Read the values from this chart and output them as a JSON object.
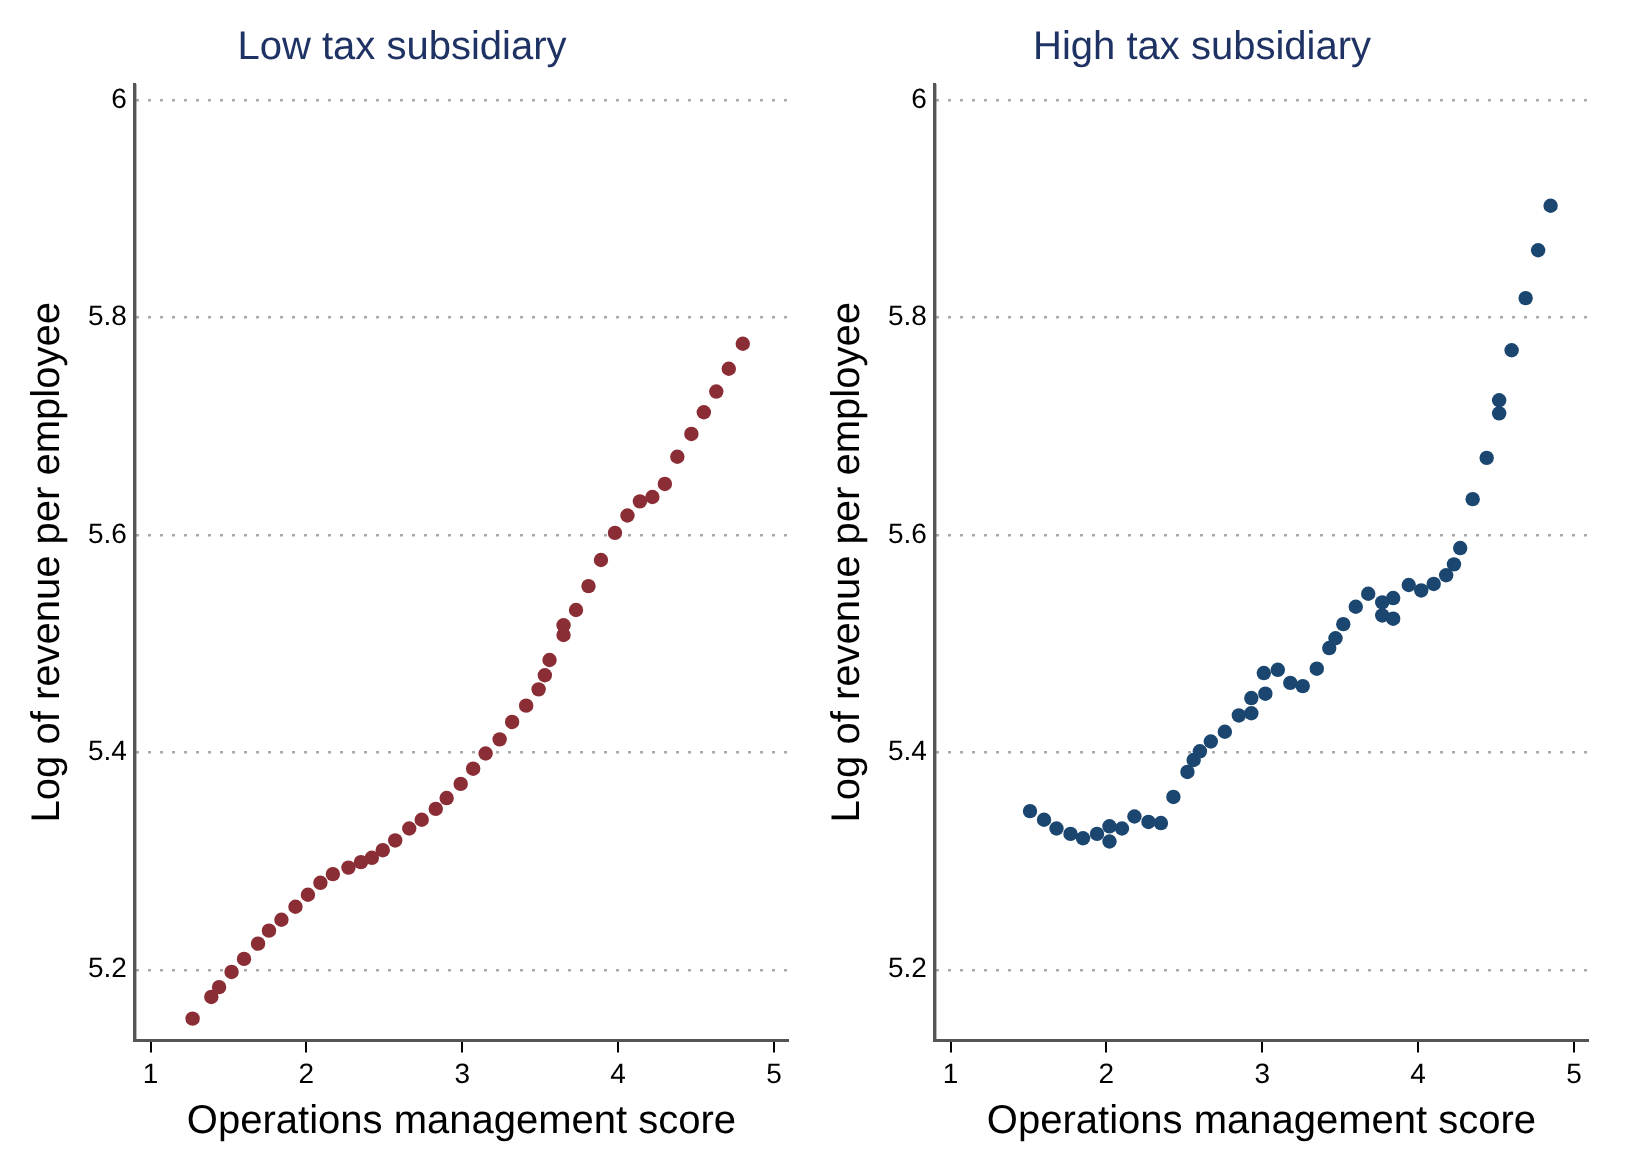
{
  "chart_data": [
    {
      "type": "scatter",
      "title": "Low tax subsidiary",
      "xlabel": "Operations management score",
      "ylabel": "Log of revenue per employee",
      "xlim": [
        0.9,
        5.09
      ],
      "ylim": [
        5.135,
        6.015
      ],
      "xticks": [
        1,
        2,
        3,
        4,
        5
      ],
      "yticks": [
        5.2,
        5.4,
        5.6,
        5.8,
        6
      ],
      "grid": "y",
      "marker": "circle",
      "series": [
        {
          "color": "#8b2d35",
          "x": [
            1.27,
            1.39,
            1.44,
            1.52,
            1.6,
            1.69,
            1.76,
            1.84,
            1.93,
            2.01,
            2.09,
            2.17,
            2.27,
            2.35,
            2.42,
            2.49,
            2.57,
            2.66,
            2.74,
            2.83,
            2.9,
            2.99,
            3.07,
            3.15,
            3.24,
            3.32,
            3.41,
            3.49,
            3.53,
            3.56,
            3.65,
            3.65,
            3.73,
            3.81,
            3.89,
            3.98,
            4.06,
            4.14,
            4.22,
            4.3,
            4.38,
            4.47,
            4.55,
            4.63,
            4.71,
            4.8
          ],
          "values": [
            5.155,
            5.175,
            5.184,
            5.198,
            5.21,
            5.224,
            5.236,
            5.246,
            5.258,
            5.269,
            5.28,
            5.288,
            5.294,
            5.299,
            5.303,
            5.31,
            5.319,
            5.33,
            5.338,
            5.348,
            5.358,
            5.371,
            5.385,
            5.399,
            5.412,
            5.428,
            5.443,
            5.458,
            5.471,
            5.485,
            5.508,
            5.517,
            5.531,
            5.553,
            5.577,
            5.602,
            5.618,
            5.631,
            5.635,
            5.647,
            5.672,
            5.693,
            5.713,
            5.732,
            5.753,
            5.776
          ]
        }
      ]
    },
    {
      "type": "scatter",
      "title": "High tax subsidiary",
      "xlabel": "Operations management score",
      "ylabel": "Log of revenue per employee",
      "xlim": [
        0.9,
        5.09
      ],
      "ylim": [
        5.135,
        6.015
      ],
      "xticks": [
        1,
        2,
        3,
        4,
        5
      ],
      "yticks": [
        5.2,
        5.4,
        5.6,
        5.8,
        6
      ],
      "grid": "y",
      "marker": "circle",
      "series": [
        {
          "color": "#1a4670",
          "x": [
            1.51,
            1.6,
            1.68,
            1.77,
            1.85,
            1.94,
            2.02,
            2.02,
            2.1,
            2.18,
            2.27,
            2.35,
            2.43,
            2.52,
            2.56,
            2.6,
            2.67,
            2.76,
            2.85,
            2.93,
            2.93,
            3.01,
            3.02,
            3.1,
            3.18,
            3.26,
            3.35,
            3.43,
            3.47,
            3.52,
            3.6,
            3.68,
            3.77,
            3.77,
            3.84,
            3.84,
            3.94,
            4.02,
            4.1,
            4.18,
            4.23,
            4.27,
            4.35,
            4.44,
            4.52,
            4.52,
            4.6,
            4.69,
            4.77,
            4.85
          ],
          "values": [
            5.346,
            5.338,
            5.33,
            5.325,
            5.321,
            5.325,
            5.332,
            5.318,
            5.33,
            5.341,
            5.336,
            5.335,
            5.359,
            5.382,
            5.393,
            5.401,
            5.41,
            5.419,
            5.434,
            5.45,
            5.436,
            5.473,
            5.454,
            5.476,
            5.464,
            5.461,
            5.477,
            5.496,
            5.505,
            5.518,
            5.534,
            5.546,
            5.526,
            5.538,
            5.542,
            5.523,
            5.554,
            5.549,
            5.555,
            5.563,
            5.573,
            5.588,
            5.633,
            5.671,
            5.724,
            5.712,
            5.77,
            5.818,
            5.862,
            5.903
          ]
        }
      ]
    }
  ]
}
